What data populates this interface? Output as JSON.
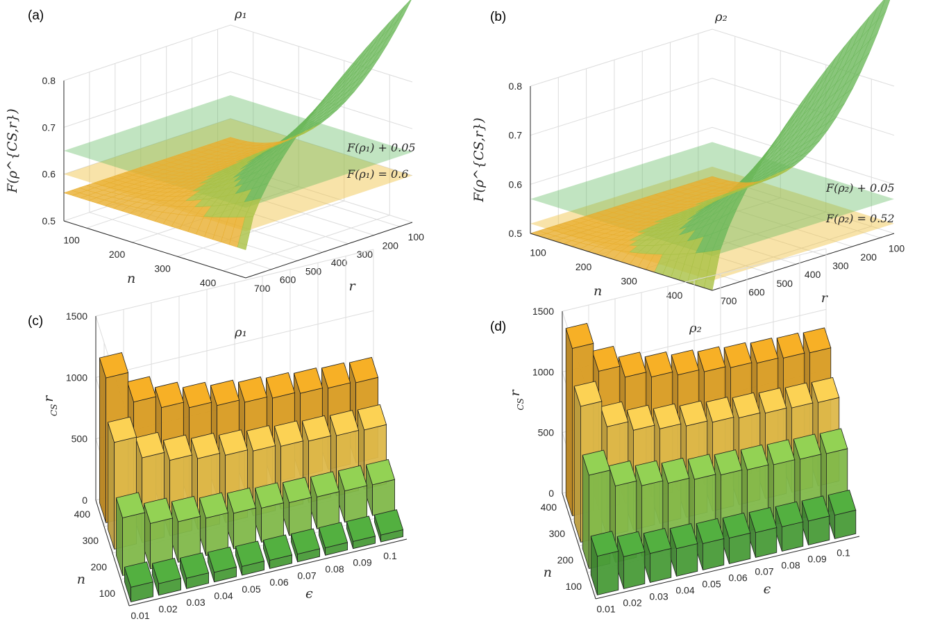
{
  "figure": {
    "panels": [
      {
        "label": "(a)",
        "title": "ρ₁"
      },
      {
        "label": "(b)",
        "title": "ρ₂"
      },
      {
        "label": "(c)",
        "title": "ρ₁"
      },
      {
        "label": "(d)",
        "title": "ρ₂"
      }
    ]
  },
  "chart_data": [
    {
      "panel": "(a)",
      "type": "area",
      "title": "ρ₁",
      "xlabel": "n",
      "ylabel": "r",
      "zlabel": "F(ρ^{CS,r})",
      "x_ticks": [
        100,
        200,
        300,
        400
      ],
      "y_ticks": [
        700,
        600,
        500,
        400,
        300,
        200,
        100
      ],
      "z_ticks": [
        0.5,
        0.6,
        0.7,
        0.8
      ],
      "xlim": [
        50,
        450
      ],
      "ylim": [
        50,
        700
      ],
      "zlim": [
        0.5,
        0.8
      ],
      "planes": [
        {
          "name": "F(ρ₁) + 0.05",
          "z": 0.65,
          "color": "#5cb85c"
        },
        {
          "name": "F(ρ₁) = 0.6",
          "z": 0.6,
          "color": "#f0c040"
        }
      ],
      "surface": {
        "formula": "z = 0.5 + 0.3 * ((1-(r-50)/650)*(n-50)/400)^1.6",
        "max": 0.8
      }
    },
    {
      "panel": "(b)",
      "type": "area",
      "title": "ρ₂",
      "xlabel": "n",
      "ylabel": "r",
      "zlabel": "F(ρ^{CS,r})",
      "x_ticks": [
        100,
        200,
        300,
        400
      ],
      "y_ticks": [
        700,
        600,
        500,
        400,
        300,
        200,
        100
      ],
      "z_ticks": [
        0.5,
        0.6,
        0.7,
        0.8
      ],
      "xlim": [
        50,
        450
      ],
      "ylim": [
        50,
        700
      ],
      "zlim": [
        0.5,
        0.8
      ],
      "planes": [
        {
          "name": "F(ρ₂) + 0.05",
          "z": 0.57,
          "color": "#5cb85c"
        },
        {
          "name": "F(ρ₂) = 0.52",
          "z": 0.52,
          "color": "#f0c040"
        }
      ],
      "surface": {
        "formula": "z = 0.5 + 0.35 * ((1-(r-50)/650)*(n-50)/400)^1.8",
        "max": 0.85
      }
    },
    {
      "panel": "(c)",
      "type": "bar",
      "title": "ρ₁",
      "xlabel": "ε",
      "ylabel": "n",
      "zlabel": "r_CS",
      "categories": [
        "0.01",
        "0.02",
        "0.03",
        "0.04",
        "0.05",
        "0.06",
        "0.07",
        "0.08",
        "0.09",
        "0.1"
      ],
      "n_ticks": [
        100,
        200,
        300,
        400
      ],
      "z_ticks": [
        0,
        500,
        1000,
        1500
      ],
      "zlim": [
        0,
        1500
      ],
      "series": [
        {
          "name": "100",
          "color": "#4fa83d",
          "values": [
            120,
            95,
            85,
            78,
            72,
            68,
            64,
            61,
            58,
            56
          ]
        },
        {
          "name": "200",
          "color": "#8cc850",
          "values": [
            470,
            370,
            330,
            305,
            290,
            278,
            268,
            260,
            255,
            250
          ]
        },
        {
          "name": "300",
          "color": "#f0c850",
          "values": [
            870,
            690,
            615,
            575,
            548,
            528,
            512,
            500,
            490,
            482
          ]
        },
        {
          "name": "400",
          "color": "#eba824",
          "values": [
            1180,
            930,
            830,
            775,
            738,
            710,
            690,
            674,
            662,
            652
          ]
        }
      ]
    },
    {
      "panel": "(d)",
      "type": "bar",
      "title": "ρ₂",
      "xlabel": "ε",
      "ylabel": "n",
      "zlabel": "r_CS",
      "categories": [
        "0.01",
        "0.02",
        "0.03",
        "0.04",
        "0.05",
        "0.06",
        "0.07",
        "0.08",
        "0.09",
        "0.1"
      ],
      "n_ticks": [
        100,
        200,
        300,
        400
      ],
      "z_ticks": [
        0,
        500,
        1000,
        1500
      ],
      "zlim": [
        0,
        1500
      ],
      "series": [
        {
          "name": "100",
          "color": "#4fa83d",
          "values": [
            320,
            265,
            240,
            228,
            218,
            212,
            206,
            202,
            198,
            195
          ]
        },
        {
          "name": "200",
          "color": "#8cc850",
          "values": [
            770,
            630,
            580,
            550,
            530,
            515,
            505,
            496,
            490,
            484
          ]
        },
        {
          "name": "300",
          "color": "#f0c850",
          "values": [
            1120,
            900,
            820,
            780,
            752,
            732,
            716,
            704,
            695,
            688
          ]
        },
        {
          "name": "400",
          "color": "#eba824",
          "values": [
            1380,
            1140,
            1040,
            990,
            955,
            930,
            912,
            898,
            888,
            880
          ]
        }
      ]
    }
  ]
}
